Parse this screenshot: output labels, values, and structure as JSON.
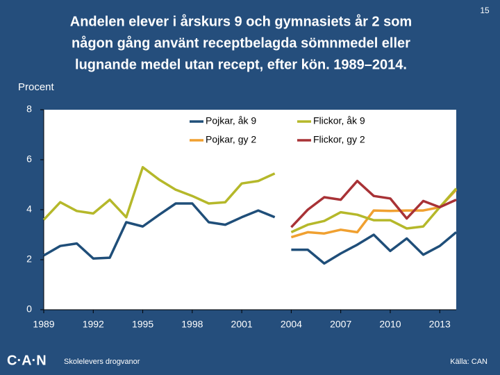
{
  "chart_data": {
    "type": "line",
    "title_lines": [
      "Andelen elever i årskurs 9 och gymnasiets år 2 som",
      "någon gång använt receptbelagda sömnmedel eller",
      "lugnande medel utan recept, efter kön.  1989–2014."
    ],
    "page_number": "15",
    "y_label": "Procent",
    "footer_logo": "C·A·N",
    "footer_text": "Skolelevers drogvanor",
    "source": "Källa: CAN",
    "x": [
      1989,
      1990,
      1991,
      1992,
      1993,
      1994,
      1995,
      1996,
      1997,
      1998,
      1999,
      2000,
      2001,
      2002,
      2003,
      2004,
      2005,
      2006,
      2007,
      2008,
      2009,
      2010,
      2011,
      2012,
      2013,
      2014
    ],
    "break_at": 2004,
    "xlim": [
      1989,
      2014
    ],
    "xticks": [
      1989,
      1992,
      1995,
      1998,
      2001,
      2004,
      2007,
      2010,
      2013
    ],
    "ylim": [
      0,
      8
    ],
    "yticks": [
      0,
      2,
      4,
      6,
      8
    ],
    "series": [
      {
        "name": "Pojkar, åk 9",
        "color": "#1f4e79",
        "values": [
          2.17,
          2.55,
          2.65,
          2.05,
          2.08,
          3.5,
          3.33,
          3.8,
          4.25,
          4.25,
          3.5,
          3.4,
          3.7,
          3.97,
          3.7,
          2.4,
          2.4,
          1.85,
          2.25,
          2.6,
          3.0,
          2.35,
          2.85,
          2.2,
          2.55,
          3.1
        ]
      },
      {
        "name": "Pojkar, gy 2",
        "color": "#f0a030",
        "values": [
          null,
          null,
          null,
          null,
          null,
          null,
          null,
          null,
          null,
          null,
          null,
          null,
          null,
          null,
          null,
          2.9,
          3.1,
          3.05,
          3.2,
          3.1,
          3.97,
          3.95,
          3.97,
          3.97,
          4.1,
          4.8
        ]
      },
      {
        "name": "Flickor, åk 9",
        "color": "#b5b82a",
        "values": [
          3.6,
          4.3,
          3.95,
          3.85,
          4.4,
          3.7,
          5.7,
          5.2,
          4.8,
          4.55,
          4.25,
          4.3,
          5.05,
          5.15,
          5.45,
          3.1,
          3.4,
          3.55,
          3.9,
          3.8,
          3.58,
          3.58,
          3.25,
          3.33,
          4.1,
          4.85
        ]
      },
      {
        "name": "Flickor, gy 2",
        "color": "#a83236",
        "values": [
          null,
          null,
          null,
          null,
          null,
          null,
          null,
          null,
          null,
          null,
          null,
          null,
          null,
          null,
          null,
          3.3,
          4.0,
          4.5,
          4.4,
          5.15,
          4.55,
          4.45,
          3.65,
          4.35,
          4.1,
          4.4
        ]
      }
    ]
  }
}
